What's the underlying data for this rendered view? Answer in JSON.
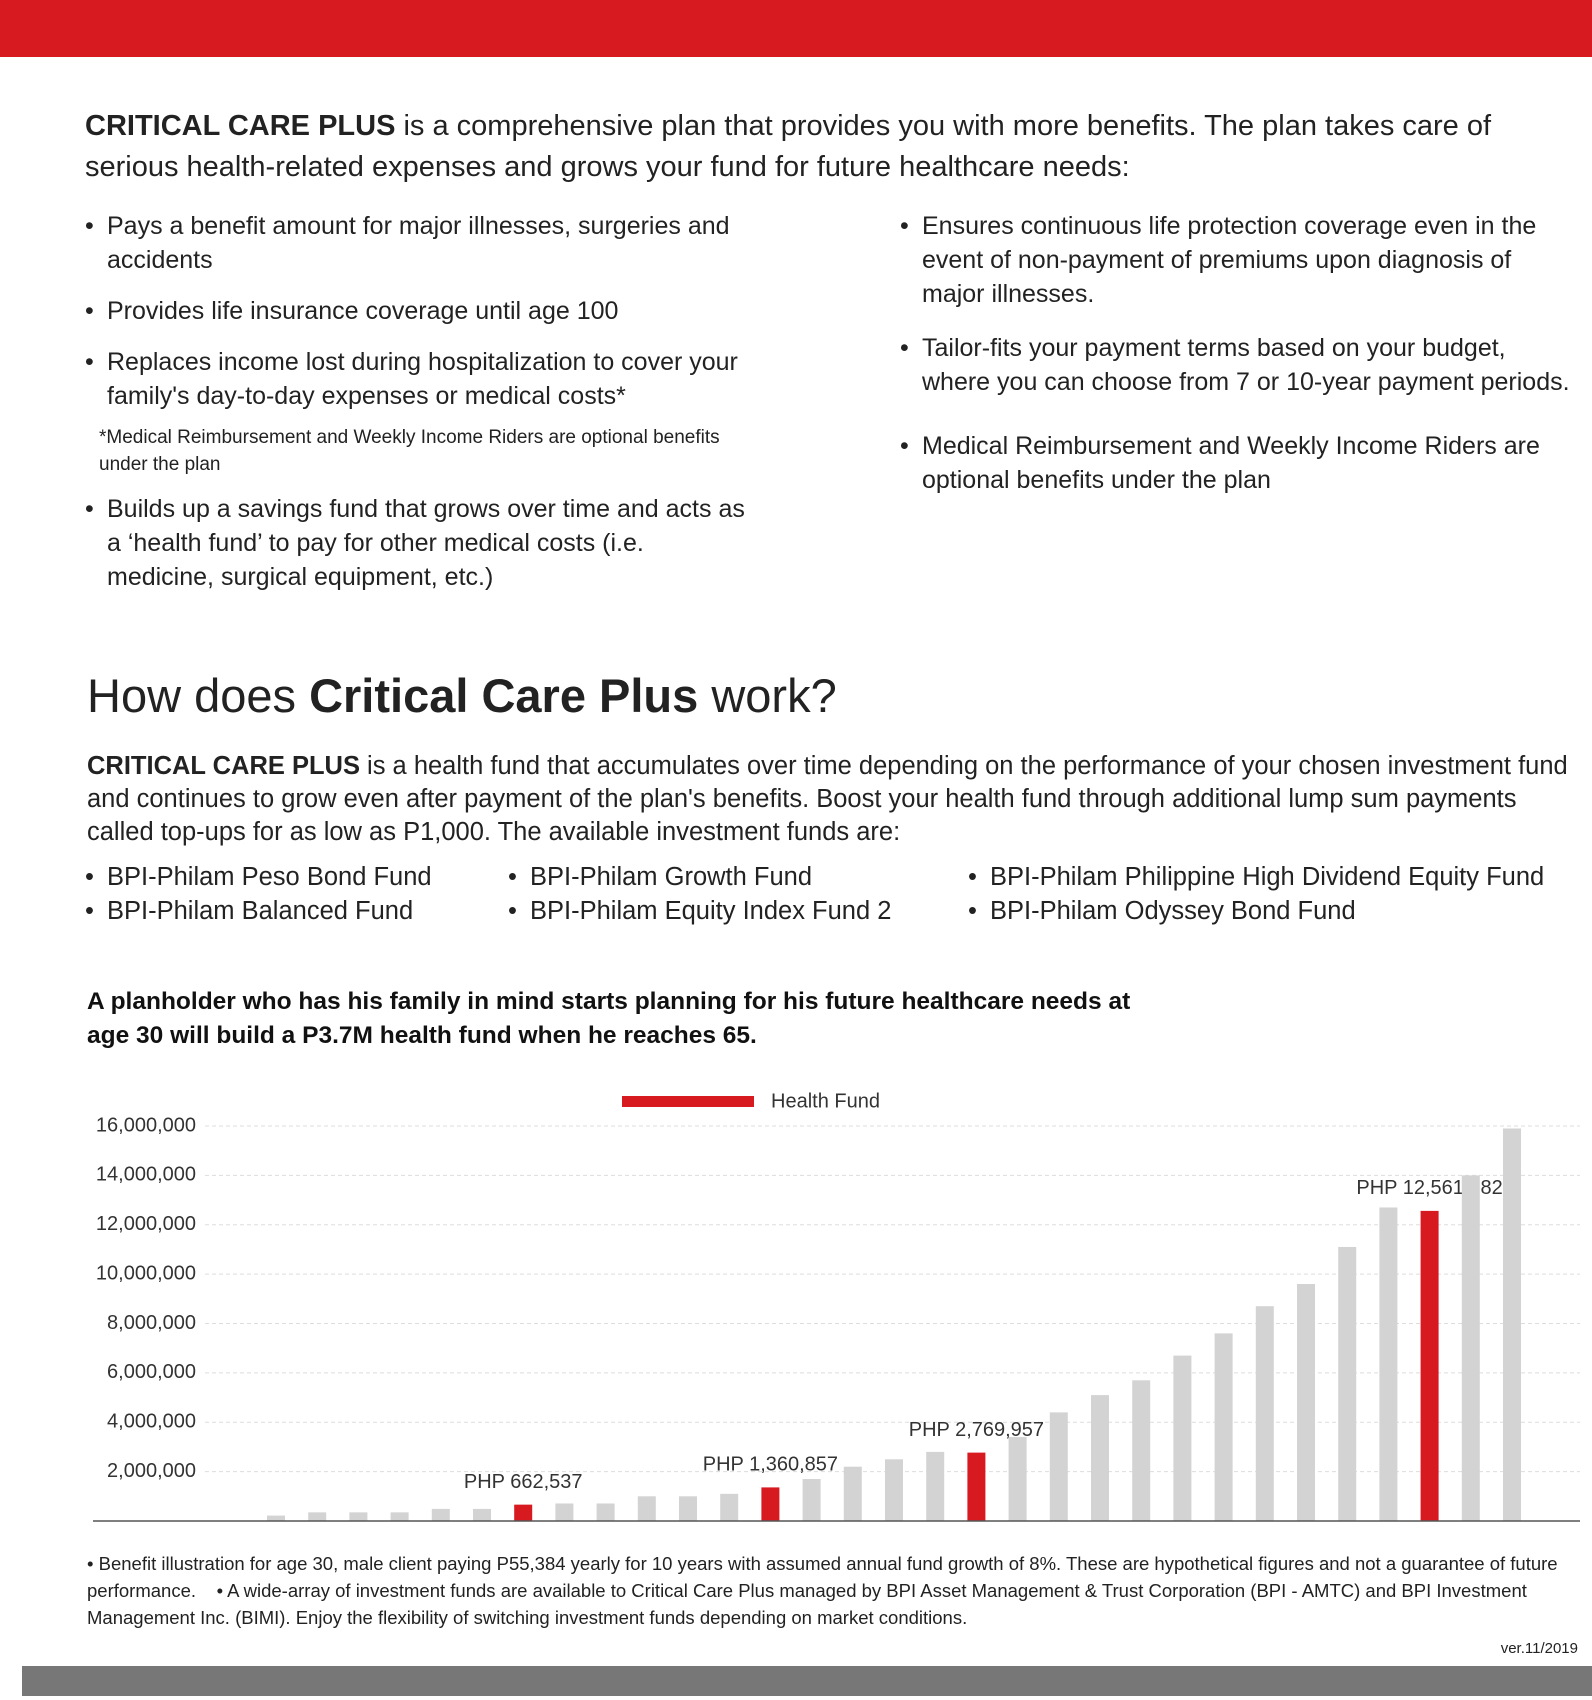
{
  "intro": {
    "lead": "CRITICAL CARE PLUS",
    "text": " is a comprehensive plan that provides you with more benefits. The plan takes care of serious health-related expenses and grows your fund for future healthcare needs:"
  },
  "benefits_left": [
    "Pays a benefit amount for major illnesses, surgeries and accidents",
    "Provides life insurance coverage until age 100",
    "Replaces income lost during hospitalization to cover your family's day-to-day expenses or medical costs*",
    "Builds up a savings fund that grows over time and acts as a ‘health fund’ to pay for other medical costs (i.e. medicine, surgical equipment, etc.)"
  ],
  "benefits_note": "*Medical Reimbursement and Weekly Income Riders are optional benefits under the plan",
  "benefits_right": [
    "Ensures continuous life protection coverage even in the event of non-payment of premiums upon diagnosis of major illnesses.",
    "Tailor-fits your payment terms based on your budget, where you can choose from 7 or 10-year payment periods.",
    "Medical Reimbursement and Weekly Income Riders are optional benefits under the plan"
  ],
  "heading": {
    "before": "How does ",
    "bold": "Critical Care Plus",
    "after": " work?"
  },
  "how": {
    "lead": "CRITICAL CARE PLUS",
    "text": " is a health fund that accumulates over time depending on the performance of your chosen investment fund and continues to grow even after payment of the plan's benefits. Boost your health fund through additional lump sum payments called top-ups for as low as P1,000. The available investment funds are:"
  },
  "funds": [
    [
      "BPI-Philam Peso Bond Fund",
      "BPI-Philam Balanced Fund"
    ],
    [
      "BPI-Philam Growth Fund",
      "BPI-Philam Equity Index Fund 2"
    ],
    [
      "BPI-Philam Philippine High Dividend Equity Fund",
      "BPI-Philam Odyssey Bond Fund"
    ]
  ],
  "example": "A planholder who has his family in mind starts planning for his future healthcare needs at age 30 will build a P3.7M health fund when he reaches 65.",
  "chart_data": {
    "type": "bar",
    "ylim": [
      0,
      16000000
    ],
    "grid": true,
    "yticks": [
      {
        "value": 2000000,
        "label": "2,000,000"
      },
      {
        "value": 4000000,
        "label": "4,000,000"
      },
      {
        "value": 6000000,
        "label": "6,000,000"
      },
      {
        "value": 8000000,
        "label": "8,000,000"
      },
      {
        "value": 10000000,
        "label": "10,000,000"
      },
      {
        "value": 12000000,
        "label": "12,000,000"
      },
      {
        "value": 14000000,
        "label": "14,000,000"
      },
      {
        "value": 16000000,
        "label": "16,000,000"
      }
    ],
    "series": [
      {
        "name": "Health Fund",
        "color": "#d71920",
        "values": [
          220000,
          350000,
          350000,
          350000,
          490000,
          490000,
          662537,
          710000,
          710000,
          1000000,
          1000000,
          1100000,
          1360857,
          1700000,
          2200000,
          2500000,
          2800000,
          2769957,
          3400000,
          4400000,
          5100000,
          5700000,
          6700000,
          7600000,
          8700000,
          9600000,
          11100000,
          12700000,
          12561282,
          14000000,
          15900000
        ],
        "colors": [
          "#d3d3d3",
          "#d3d3d3",
          "#d3d3d3",
          "#d3d3d3",
          "#d3d3d3",
          "#d3d3d3",
          "#d71920",
          "#d3d3d3",
          "#d3d3d3",
          "#d3d3d3",
          "#d3d3d3",
          "#d3d3d3",
          "#d71920",
          "#d3d3d3",
          "#d3d3d3",
          "#d3d3d3",
          "#d3d3d3",
          "#d71920",
          "#d3d3d3",
          "#d3d3d3",
          "#d3d3d3",
          "#d3d3d3",
          "#d3d3d3",
          "#d3d3d3",
          "#d3d3d3",
          "#d3d3d3",
          "#d3d3d3",
          "#d3d3d3",
          "#d71920",
          "#d3d3d3",
          "#d3d3d3"
        ],
        "value_labels": [
          null,
          null,
          null,
          null,
          null,
          null,
          "PHP 662,537",
          null,
          null,
          null,
          null,
          null,
          "PHP 1,360,857",
          null,
          null,
          null,
          null,
          "PHP 2,769,957",
          null,
          null,
          null,
          null,
          null,
          null,
          null,
          null,
          null,
          null,
          "PHP 12,561,282",
          null,
          null
        ]
      }
    ]
  },
  "footnotes": [
    "Benefit illustration for age 30, male client paying P55,384 yearly for 10 years with assumed annual fund growth of 8%. These are hypothetical figures and not a guarantee of future performance.",
    "A wide-array of investment funds are available to Critical Care Plus managed by BPI Asset Management & Trust Corporation (BPI - AMTC) and BPI Investment Management Inc. (BIMI). Enjoy the flexibility of switching investment funds depending on market conditions."
  ],
  "version": "ver.11/2019"
}
